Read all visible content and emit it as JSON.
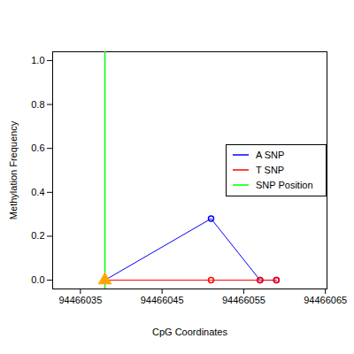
{
  "chart_data": {
    "type": "line",
    "x_label": "CpG Coordinates",
    "y_label": "Methylation Frequency",
    "xlim": [
      94466031.6,
      94466065.2
    ],
    "xticks": [
      94466035,
      94466045,
      94466055,
      94466065
    ],
    "ylim": [
      -0.04,
      1.04
    ],
    "yticks": [
      {
        "value": 0,
        "label": "0.0"
      },
      {
        "value": 0.2,
        "label": "0.2"
      },
      {
        "value": 0.4,
        "label": "0.4"
      },
      {
        "value": 0.6,
        "label": "0.6"
      },
      {
        "value": 0.8,
        "label": "0.8"
      },
      {
        "value": 1,
        "label": "1.0"
      }
    ],
    "legend": "right",
    "series": [
      {
        "name": "A SNP",
        "color": "#0000ff",
        "marker": "circle",
        "x": [
          94466038,
          94466051,
          94466057,
          94466059
        ],
        "values": [
          0,
          0.28,
          0,
          0
        ]
      },
      {
        "name": "T SNP",
        "color": "#ff0000",
        "marker": "circle",
        "x": [
          94466038,
          94466051,
          94466057,
          94466059
        ],
        "values": [
          0,
          0,
          0,
          0
        ]
      },
      {
        "name": "SNP Position",
        "color": "#00ff00",
        "type": "rule",
        "x": [
          94466038
        ]
      }
    ],
    "snp_marker": {
      "x": 94466038,
      "y": 0,
      "color": "#ffa500",
      "marker": "triangle"
    }
  }
}
